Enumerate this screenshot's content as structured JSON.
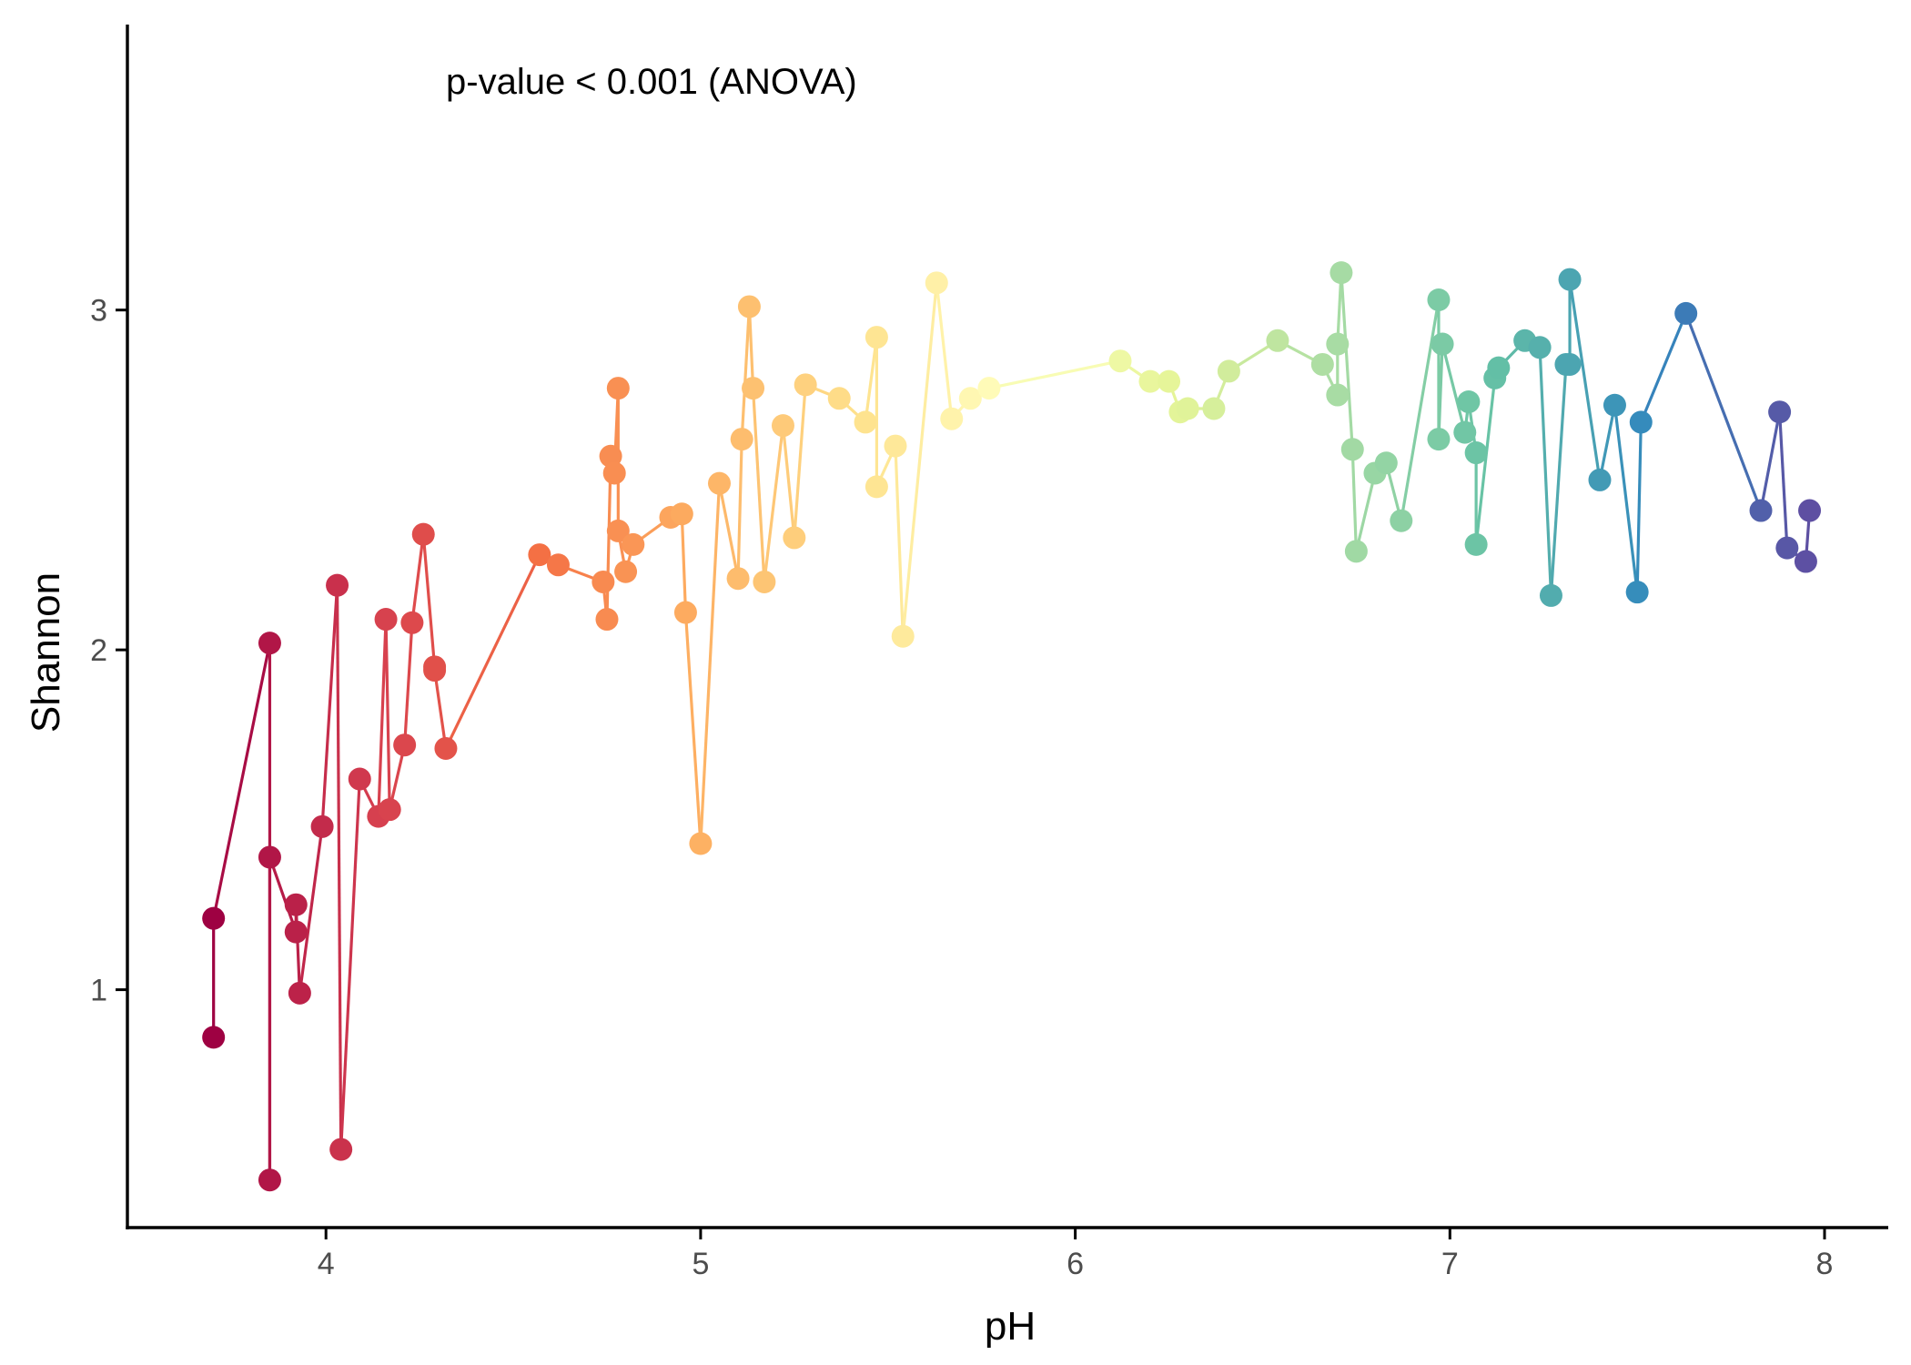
{
  "chart_data": {
    "type": "line",
    "title": "",
    "annotation": "p-value < 0.001 (ANOVA)",
    "xlabel": "pH",
    "ylabel": "Shannon",
    "xlim": [
      3.47,
      8.17
    ],
    "ylim": [
      0.3,
      3.84
    ],
    "x_ticks": [
      4,
      5,
      6,
      7,
      8
    ],
    "x_tick_labels": [
      "4",
      "5",
      "6",
      "7",
      "8"
    ],
    "y_ticks": [
      1,
      2,
      3
    ],
    "y_tick_labels": [
      "1",
      "2",
      "3"
    ],
    "grid": false,
    "legend": "none",
    "color_scale": "Spectral (low pH red → high pH purple)",
    "x": [
      3.7,
      3.7,
      3.85,
      3.85,
      3.85,
      3.92,
      3.92,
      3.93,
      3.99,
      4.03,
      4.04,
      4.09,
      4.14,
      4.16,
      4.17,
      4.21,
      4.23,
      4.26,
      4.29,
      4.29,
      4.32,
      4.57,
      4.62,
      4.74,
      4.75,
      4.76,
      4.77,
      4.78,
      4.78,
      4.8,
      4.82,
      4.92,
      4.95,
      4.96,
      5.0,
      5.05,
      5.1,
      5.11,
      5.13,
      5.14,
      5.17,
      5.22,
      5.25,
      5.28,
      5.37,
      5.44,
      5.47,
      5.47,
      5.52,
      5.54,
      5.63,
      5.67,
      5.72,
      5.77,
      6.12,
      6.2,
      6.25,
      6.28,
      6.3,
      6.37,
      6.41,
      6.54,
      6.66,
      6.7,
      6.7,
      6.71,
      6.74,
      6.75,
      6.8,
      6.83,
      6.87,
      6.97,
      6.97,
      6.98,
      7.04,
      7.05,
      7.07,
      7.07,
      7.12,
      7.13,
      7.2,
      7.24,
      7.27,
      7.31,
      7.32,
      7.32,
      7.4,
      7.44,
      7.5,
      7.51,
      7.63,
      7.83,
      7.88,
      7.9,
      7.95,
      7.96
    ],
    "series": [
      {
        "name": "",
        "values": [
          0.86,
          1.21,
          2.02,
          0.44,
          1.39,
          1.17,
          1.25,
          0.99,
          1.48,
          2.19,
          0.53,
          1.62,
          1.51,
          2.09,
          1.53,
          1.72,
          2.08,
          2.34,
          1.95,
          1.94,
          1.71,
          2.28,
          2.25,
          2.2,
          2.09,
          2.57,
          2.52,
          2.77,
          2.35,
          2.23,
          2.31,
          2.39,
          2.4,
          2.11,
          1.43,
          2.49,
          2.21,
          2.62,
          3.01,
          2.77,
          2.2,
          2.66,
          2.33,
          2.78,
          2.74,
          2.67,
          2.92,
          2.48,
          2.6,
          2.04,
          3.08,
          2.68,
          2.74,
          2.77,
          2.85,
          2.79,
          2.79,
          2.7,
          2.71,
          2.71,
          2.82,
          2.91,
          2.84,
          2.75,
          2.9,
          3.11,
          2.59,
          2.29,
          2.52,
          2.55,
          2.38,
          3.03,
          2.62,
          2.9,
          2.64,
          2.73,
          2.58,
          2.31,
          2.8,
          2.83,
          2.91,
          2.89,
          2.16,
          2.84,
          2.84,
          3.09,
          2.5,
          2.72,
          2.17,
          2.67,
          2.99,
          2.41,
          2.7,
          2.3,
          2.26,
          2.41
        ]
      }
    ]
  }
}
